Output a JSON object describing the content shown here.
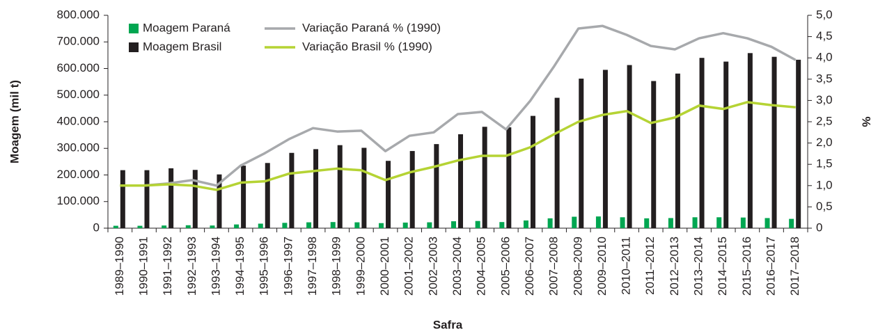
{
  "chart_data": {
    "type": "bar-line",
    "x_label": "Safra",
    "y_label": "Moagem (mil t)",
    "y2_label": "%",
    "categories": [
      "1989–1990",
      "1990–1991",
      "1991–1992",
      "1992–1993",
      "1993–1994",
      "1994–1995",
      "1995–1996",
      "1996–1997",
      "1997–1998",
      "1998–1999",
      "1999–2000",
      "2000–2001",
      "2001–2002",
      "2002–2003",
      "2003–2004",
      "2004–2005",
      "2005–2006",
      "2006–2007",
      "2007–2008",
      "2008–2009",
      "2009–2010",
      "2010–2011",
      "2011–2012",
      "2012–2013",
      "2013–2014",
      "2014–2015",
      "2015–2016",
      "2016–2017",
      "2017–2018"
    ],
    "series": [
      {
        "name": "Moagem Paraná",
        "type": "bar",
        "color": "#00a651",
        "values": [
          9000,
          9000,
          10000,
          11000,
          10000,
          14000,
          17000,
          20000,
          22000,
          23000,
          22000,
          19000,
          21000,
          22000,
          26000,
          27000,
          23000,
          29000,
          37000,
          43000,
          44000,
          41000,
          37000,
          38000,
          41000,
          41000,
          40000,
          38000,
          35000
        ]
      },
      {
        "name": "Moagem Brasil",
        "type": "bar",
        "color": "#231f20",
        "values": [
          218000,
          218000,
          225000,
          219000,
          202000,
          235000,
          245000,
          283000,
          297000,
          312000,
          302000,
          253000,
          290000,
          316000,
          353000,
          381000,
          379000,
          422000,
          490000,
          562000,
          595000,
          613000,
          553000,
          581000,
          640000,
          626000,
          658000,
          644000,
          633000
        ]
      },
      {
        "name": "Variação Paraná % (1990)",
        "type": "line",
        "axis": "y2",
        "color": "#a7a9ac",
        "values": [
          1.0,
          1.0,
          1.05,
          1.13,
          1.0,
          1.47,
          1.76,
          2.09,
          2.35,
          2.27,
          2.29,
          1.81,
          2.17,
          2.25,
          2.68,
          2.73,
          2.32,
          2.99,
          3.81,
          4.69,
          4.75,
          4.54,
          4.28,
          4.2,
          4.46,
          4.58,
          4.46,
          4.26,
          3.95
        ]
      },
      {
        "name": "Variação Brasil % (1990)",
        "type": "line",
        "axis": "y2",
        "color": "#b5d334",
        "values": [
          1.0,
          1.0,
          1.03,
          1.0,
          0.9,
          1.07,
          1.1,
          1.28,
          1.34,
          1.4,
          1.36,
          1.13,
          1.31,
          1.44,
          1.59,
          1.7,
          1.7,
          1.9,
          2.21,
          2.5,
          2.66,
          2.75,
          2.47,
          2.6,
          2.88,
          2.8,
          2.96,
          2.89,
          2.84
        ]
      }
    ],
    "ylim": [
      0,
      800000
    ],
    "yticks": [
      0,
      {
        "value": 100000,
        "label": "100.000"
      },
      {
        "value": 200000,
        "label": "200.000"
      },
      {
        "value": 300000,
        "label": "300.000"
      },
      {
        "value": 400000,
        "label": "400.000"
      },
      {
        "value": 500000,
        "label": "500.000"
      },
      {
        "value": 600000,
        "label": "600.000"
      },
      {
        "value": 700000,
        "label": "700.000"
      },
      {
        "value": 800000,
        "label": "800.000"
      }
    ],
    "y2lim": [
      0,
      5
    ],
    "y2ticks": [
      0,
      {
        "value": 0.5,
        "label": "0,5"
      },
      {
        "value": 1,
        "label": "1,0"
      },
      {
        "value": 1.5,
        "label": "1,5"
      },
      {
        "value": 2,
        "label": "2,0"
      },
      {
        "value": 2.5,
        "label": "2,5"
      },
      {
        "value": 3,
        "label": "3,0"
      },
      {
        "value": 3.5,
        "label": "3,5"
      },
      {
        "value": 4,
        "label": "4,0"
      },
      {
        "value": 4.5,
        "label": "4,5"
      },
      {
        "value": 5,
        "label": "5,0"
      }
    ],
    "grid": false
  }
}
